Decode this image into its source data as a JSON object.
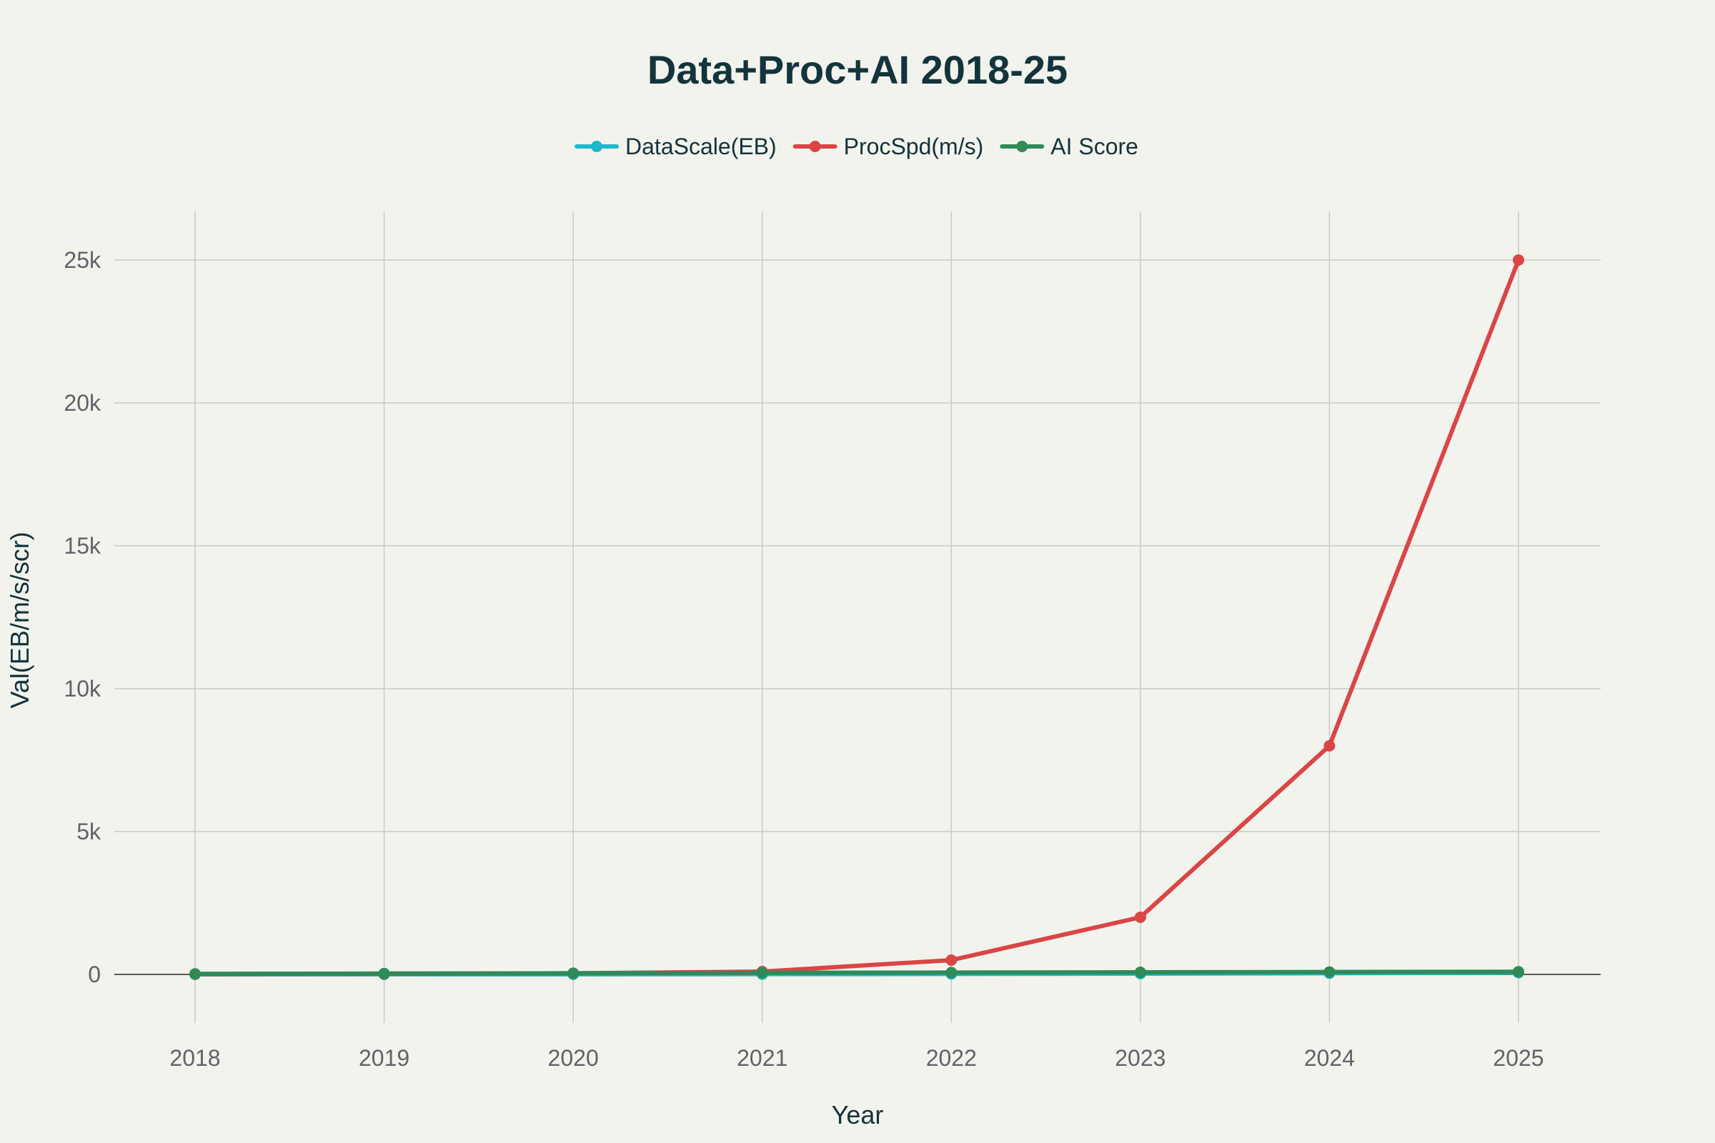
{
  "chart_data": {
    "type": "line",
    "title": "Data+Proc+AI 2018-25",
    "xlabel": "Year",
    "ylabel": "Val(EB/m/s/scr)",
    "x": [
      "2018",
      "2019",
      "2020",
      "2021",
      "2022",
      "2023",
      "2024",
      "2025"
    ],
    "ylim": [
      -1700,
      26700
    ],
    "y_ticks": [
      0,
      5000,
      10000,
      15000,
      20000,
      25000
    ],
    "y_tick_labels": [
      "0",
      "5k",
      "10k",
      "15k",
      "20k",
      "25k"
    ],
    "grid": true,
    "legend_position": "top-center",
    "series": [
      {
        "name": "DataScale(EB)",
        "color": "#1fb8cd",
        "values": [
          1,
          2,
          4,
          8,
          15,
          25,
          40,
          60
        ]
      },
      {
        "name": "ProcSpd(m/s)",
        "color": "#db4545",
        "values": [
          10,
          20,
          40,
          100,
          500,
          2000,
          8000,
          25000
        ]
      },
      {
        "name": "AI Score",
        "color": "#2e8b57",
        "values": [
          20,
          30,
          40,
          55,
          65,
          75,
          85,
          95
        ]
      }
    ]
  }
}
